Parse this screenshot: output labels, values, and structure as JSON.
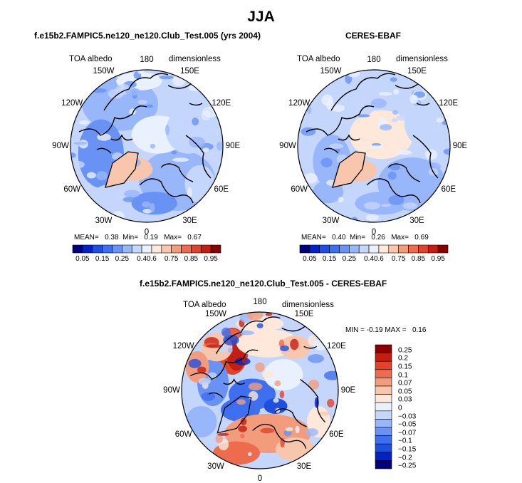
{
  "title": "JJA",
  "panels": [
    {
      "id": "model",
      "title": "f.e15b2.FAMPIC5.ne120_ne120.Club_Test.005 (yrs 2004)",
      "left_label": "TOA albedo",
      "right_label": "dimensionless",
      "stats": {
        "mean_label": "MEAN=",
        "mean": "0.38",
        "min_label": "Min=",
        "min": "0.19",
        "max_label": "Max=",
        "max": "0.67"
      }
    },
    {
      "id": "obs",
      "title": "CERES-EBAF",
      "left_label": "TOA albedo",
      "right_label": "dimensionless",
      "stats": {
        "mean_label": "MEAN=",
        "mean": "0.40",
        "min_label": "Min=",
        "min": "0.26",
        "max_label": "Max=",
        "max": "0.69"
      }
    },
    {
      "id": "diff",
      "title": "f.e15b2.FAMPIC5.ne120_ne120.Club_Test.005 - CERES-EBAF",
      "left_label": "TOA albedo",
      "right_label": "dimensionless",
      "stats": {
        "min_label": "MIN =",
        "min": "-0.19",
        "max_label": "MAX =",
        "max": "0.16"
      }
    }
  ],
  "longitude_labels": [
    "180",
    "150E",
    "120E",
    "90E",
    "60E",
    "30E",
    "0",
    "30W",
    "60W",
    "90W",
    "120W",
    "150W"
  ],
  "abs_colorbar": {
    "ticks": [
      "0.05",
      "0.15",
      "0.25",
      "0.4",
      "0.6",
      "0.75",
      "0.85",
      "0.95"
    ],
    "colors": [
      "#00007f",
      "#0022c8",
      "#1f4fe0",
      "#3e6fef",
      "#6893f5",
      "#98b6fa",
      "#c5d6fc",
      "#eaf1fe",
      "#fde8da",
      "#f7c6ad",
      "#f29c7c",
      "#ec6c4d",
      "#e0442b",
      "#c41e10",
      "#8a0000"
    ]
  },
  "diff_colorbar": {
    "ticks": [
      "0.25",
      "0.2",
      "0.15",
      "0.1",
      "0.07",
      "0.05",
      "0.03",
      "0",
      "−0.03",
      "−0.05",
      "−0.07",
      "−0.1",
      "−0.15",
      "−0.2",
      "−0.25"
    ],
    "colors": [
      "#8a0000",
      "#c41e10",
      "#e0442b",
      "#ec6c4d",
      "#f29c7c",
      "#f7c6ad",
      "#fde8da",
      "#eaf1fe",
      "#c5d6fc",
      "#98b6fa",
      "#6893f5",
      "#3e6fef",
      "#1f4fe0",
      "#0022c8",
      "#00007f"
    ]
  }
}
